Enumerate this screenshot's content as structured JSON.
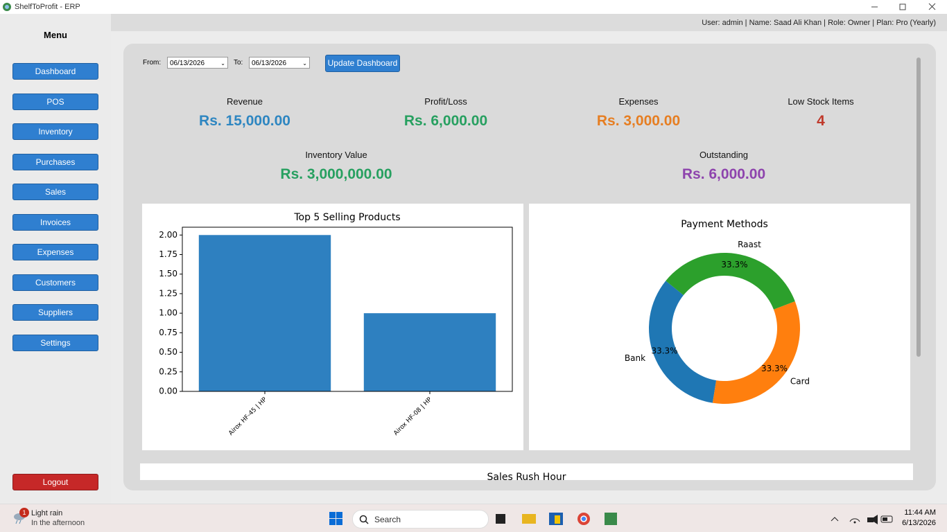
{
  "window": {
    "title": "ShelfToProfit - ERP"
  },
  "header": {
    "user_info": "User: admin | Name: Saad Ali Khan | Role: Owner | Plan: Pro (Yearly)"
  },
  "menu": {
    "title": "Menu",
    "items": [
      "Dashboard",
      "POS",
      "Inventory",
      "Purchases",
      "Sales",
      "Invoices",
      "Expenses",
      "Customers",
      "Suppliers",
      "Settings"
    ],
    "logout": "Logout"
  },
  "filters": {
    "from_label": "From:",
    "from_date": "06/13/2026",
    "to_label": "To:",
    "to_date": "06/13/2026",
    "button": "Update Dashboard"
  },
  "kpis": [
    {
      "label": "Revenue",
      "value": "Rs. 15,000.00"
    },
    {
      "label": "Profit/Loss",
      "value": "Rs. 6,000.00"
    },
    {
      "label": "Expenses",
      "value": "Rs. 3,000.00"
    },
    {
      "label": "Low Stock Items",
      "value": "4"
    },
    {
      "label": "Inventory Value",
      "value": "Rs. 3,000,000.00"
    },
    {
      "label": "Outstanding",
      "value": "Rs. 6,000.00"
    }
  ],
  "chart_data": [
    {
      "type": "bar",
      "title": "Top 5 Selling Products",
      "categories": [
        "Airox HF-45 | HP",
        "Airox HF-08 | HP"
      ],
      "values": [
        2,
        1
      ],
      "color": "#2e80c0",
      "ylim": [
        0,
        2.1
      ],
      "yticks": [
        {
          "value": 0,
          "label": "0.00"
        },
        {
          "value": 0.25,
          "label": "0.25"
        },
        {
          "value": 0.5,
          "label": "0.50"
        },
        {
          "value": 0.75,
          "label": "0.75"
        },
        {
          "value": 1,
          "label": "1.00"
        },
        {
          "value": 1.25,
          "label": "1.25"
        },
        {
          "value": 1.5,
          "label": "1.50"
        },
        {
          "value": 1.75,
          "label": "1.75"
        },
        {
          "value": 2,
          "label": "2.00"
        }
      ],
      "grid": false
    },
    {
      "type": "pie",
      "title": "Payment Methods",
      "categories": [
        "Bank",
        "Card",
        "Raast"
      ],
      "values": [
        33.3,
        33.3,
        33.3
      ],
      "value_labels": [
        "33.3%",
        "33.3%",
        "33.3%"
      ],
      "colors": [
        "#1f77b4",
        "#ff7f0e",
        "#2ca02c"
      ],
      "donut": true
    }
  ],
  "sales_rush": {
    "title": "Sales Rush Hour"
  },
  "taskbar": {
    "weather_badge": "1",
    "weather": "Light rain",
    "weather_detail": "In the afternoon",
    "search": "Search",
    "time": "11:44 AM",
    "date": "6/13/2026"
  }
}
